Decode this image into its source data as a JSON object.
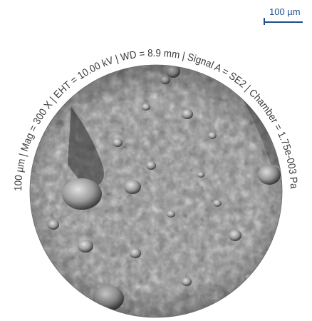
{
  "scale": {
    "label": "100 µm",
    "color": "#1e4e8c"
  },
  "caption": {
    "text": "100 µm | Mag = 300 X | EHT = 10.00 kV | WD = 8.9 mm | Signal A = SE2 | Chamber = 1.75e-003 Pa"
  },
  "image": {
    "subject": "SEM micrograph of particulate surface in circular field of view",
    "colors": {
      "dark": "#5a5a5a",
      "mid": "#8c8c8c",
      "light": "#c8c8c8"
    }
  }
}
